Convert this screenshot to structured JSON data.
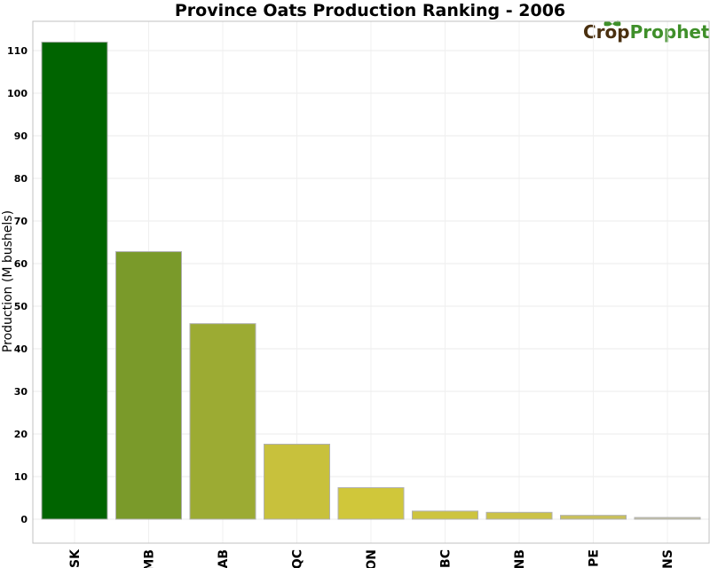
{
  "chart_data": {
    "type": "bar",
    "title": "Province Oats Production Ranking - 2006",
    "xlabel": "",
    "ylabel": "Production (M bushels)",
    "categories": [
      "SK",
      "MB",
      "AB",
      "QC",
      "ON",
      "BC",
      "NB",
      "PE",
      "NS"
    ],
    "values": [
      112,
      62.8,
      45.9,
      17.6,
      7.4,
      1.9,
      1.6,
      0.9,
      0.4
    ],
    "colors": [
      "#006400",
      "#7a9a2a",
      "#9cab33",
      "#c8c13c",
      "#d0c73a",
      "#cdc43f",
      "#cbc247",
      "#c9c05a",
      "#c8c3a0"
    ],
    "ylim": [
      -5,
      116
    ],
    "yticks": [
      0,
      10,
      20,
      30,
      40,
      50,
      60,
      70,
      80,
      90,
      100,
      110
    ],
    "grid": true
  },
  "logo": {
    "part1": "Crop",
    "part2": "Prophet"
  }
}
